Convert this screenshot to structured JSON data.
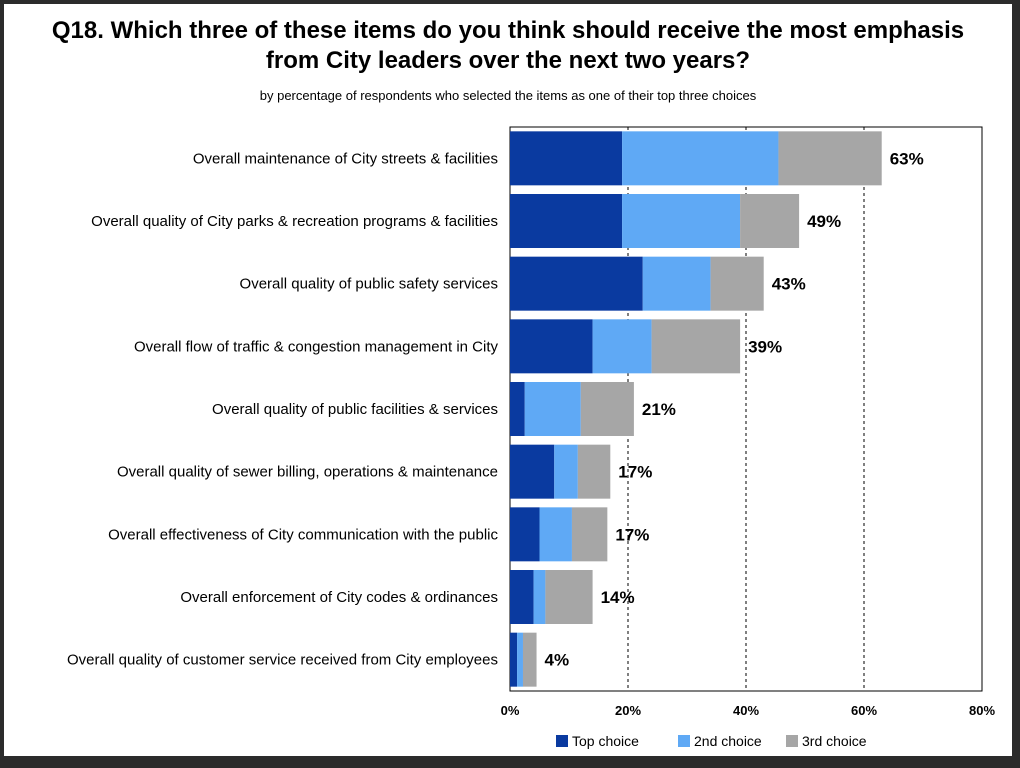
{
  "chart_data": {
    "type": "bar",
    "orientation": "horizontal",
    "stacked": true,
    "title_line1": "Q18. Which three of these items do you think should receive the most emphasis",
    "title_line2": "from City leaders over the next two years?",
    "subtitle": "by percentage of respondents who selected the items as one of their top three choices",
    "categories": [
      "Overall maintenance of City streets & facilities",
      "Overall quality of City parks & recreation programs & facilities",
      "Overall quality of public safety services",
      "Overall flow of traffic & congestion management in City",
      "Overall quality of public facilities & services",
      "Overall quality of sewer billing, operations & maintenance",
      "Overall effectiveness of City communication with the public",
      "Overall enforcement of City codes & ordinances",
      "Overall quality of customer service received from City employees"
    ],
    "series": [
      {
        "name": "Top choice",
        "color": "#0a3aa0",
        "values": [
          19,
          19,
          22.5,
          14,
          2.5,
          7.5,
          5,
          4,
          1.2
        ]
      },
      {
        "name": "2nd choice",
        "color": "#5fa9f5",
        "values": [
          26.5,
          20,
          11.5,
          10,
          9.5,
          4,
          5.5,
          2,
          1
        ]
      },
      {
        "name": "3rd choice",
        "color": "#a6a6a6",
        "values": [
          17.5,
          10,
          9,
          15,
          9,
          5.5,
          6,
          8,
          2.3
        ]
      }
    ],
    "totals": [
      "63%",
      "49%",
      "43%",
      "39%",
      "21%",
      "17%",
      "17%",
      "14%",
      "4%"
    ],
    "xlim": [
      0,
      80
    ],
    "xticks": [
      "0%",
      "20%",
      "40%",
      "60%",
      "80%"
    ],
    "xtick_values": [
      0,
      20,
      40,
      60,
      80
    ],
    "grid": "dashed vertical at 20%, 40%, 60%",
    "legend_position": "bottom"
  }
}
